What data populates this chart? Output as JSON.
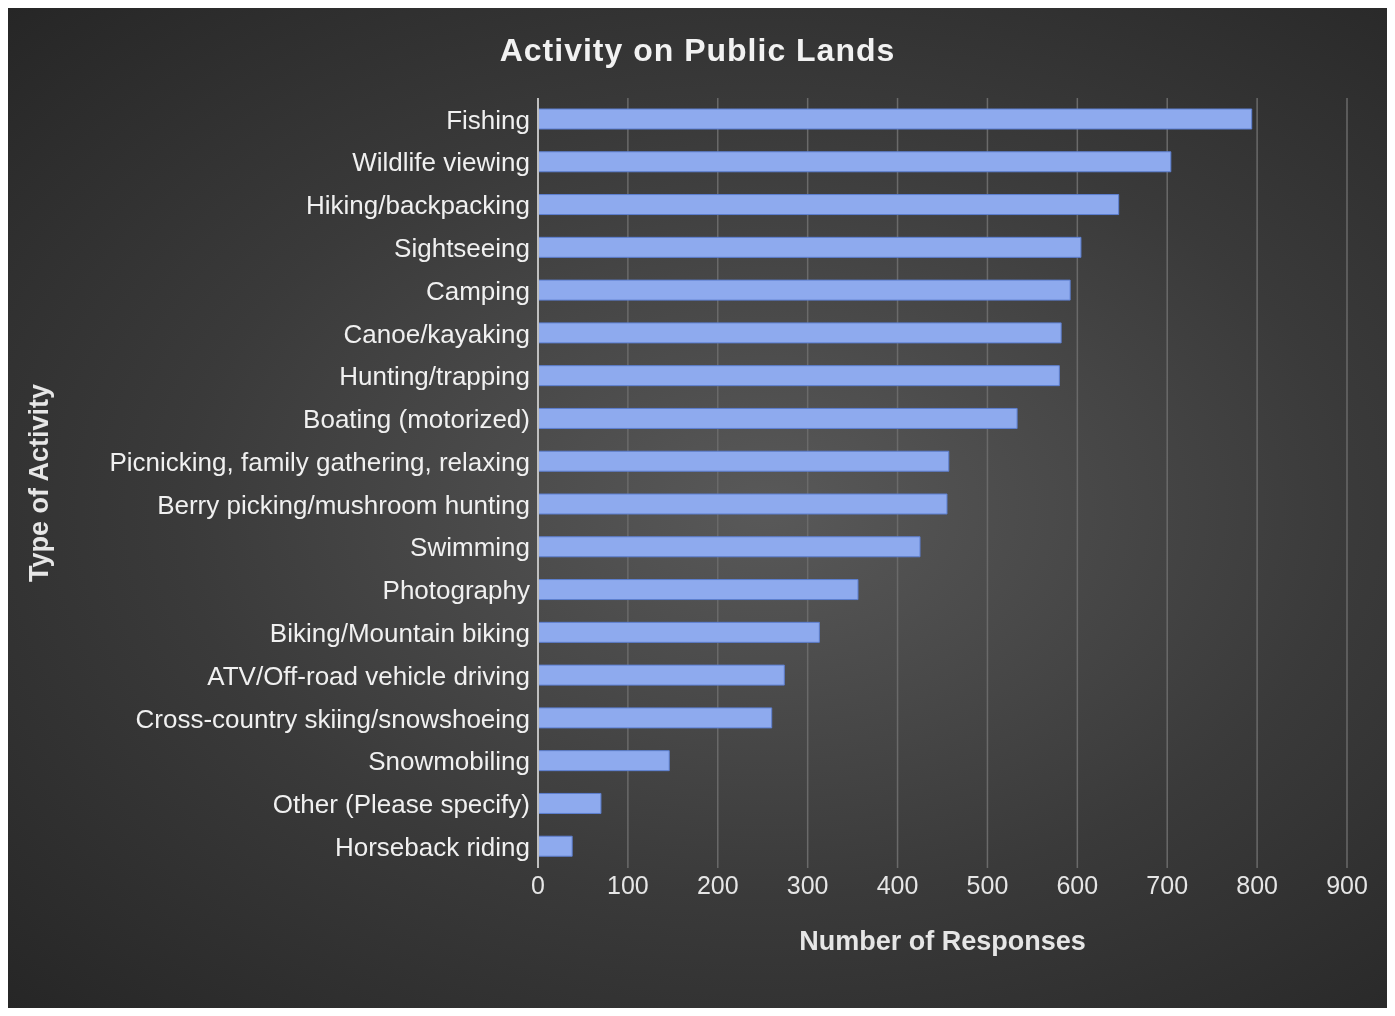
{
  "chart_data": {
    "type": "bar",
    "orientation": "horizontal",
    "title": "Activity on Public Lands",
    "xlabel": "Number of Responses",
    "ylabel": "Type of Activity",
    "categories": [
      "Fishing",
      "Wildlife viewing",
      "Hiking/backpacking",
      "Sightseeing",
      "Camping",
      "Canoe/kayaking",
      "Hunting/trapping",
      "Boating (motorized)",
      "Picnicking, family gathering, relaxing",
      "Berry picking/mushroom hunting",
      "Swimming",
      "Photography",
      "Biking/Mountain biking",
      "ATV/Off-road vehicle driving",
      "Cross-country skiing/snowshoeing",
      "Snowmobiling",
      "Other (Please specify)",
      "Horseback riding"
    ],
    "values": [
      794,
      704,
      646,
      604,
      592,
      582,
      580,
      533,
      457,
      455,
      425,
      356,
      313,
      274,
      260,
      146,
      70,
      38
    ],
    "color": "#8eaaee",
    "xlim": [
      0,
      900
    ],
    "xticks": [
      0,
      100,
      200,
      300,
      400,
      500,
      600,
      700,
      800,
      900
    ],
    "grid": "x"
  }
}
